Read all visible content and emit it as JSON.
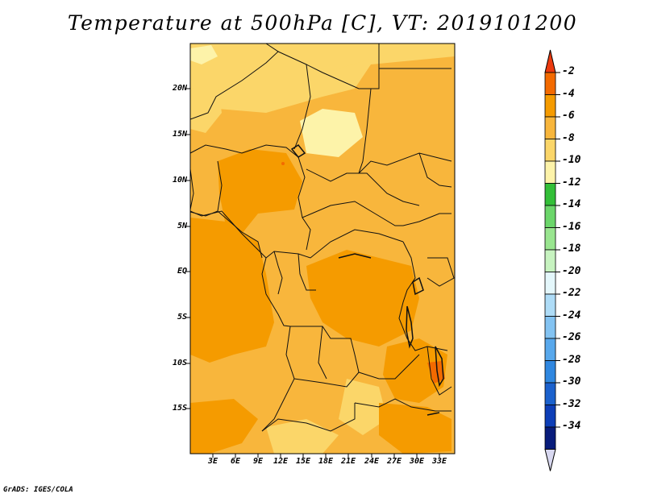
{
  "title": "Temperature at 500hPa [C], VT: 2019101200",
  "credit": "GrADS: IGES/COLA",
  "map": {
    "lat_labels": [
      "20N",
      "15N",
      "10N",
      "5N",
      "EQ",
      "5S",
      "10S",
      "15S"
    ],
    "lon_labels": [
      "3E",
      "6E",
      "9E",
      "12E",
      "15E",
      "18E",
      "21E",
      "24E",
      "27E",
      "30E",
      "33E"
    ]
  },
  "colorbar": {
    "labels": [
      "-2",
      "-4",
      "-6",
      "-8",
      "-10",
      "-12",
      "-14",
      "-16",
      "-18",
      "-20",
      "-22",
      "-24",
      "-26",
      "-28",
      "-30",
      "-32",
      "-34"
    ],
    "colors": [
      "#ec3a0f",
      "#f36a00",
      "#f59b00",
      "#f8b63c",
      "#fbd669",
      "#fdf3a9",
      "#33bf38",
      "#6bd66a",
      "#99e58f",
      "#c7f3c0",
      "#e4f7fb",
      "#aedcf7",
      "#83c3f2",
      "#58a8ec",
      "#2f87e0",
      "#1b61cd",
      "#0d3eb7",
      "#081c7b",
      "#d8d8f0"
    ]
  },
  "colors": {
    "base": "#f8b63c",
    "warm": "#f59b00",
    "cool": "#fbd669",
    "coolest": "#fdf3a9",
    "warmest": "#f36a00"
  }
}
